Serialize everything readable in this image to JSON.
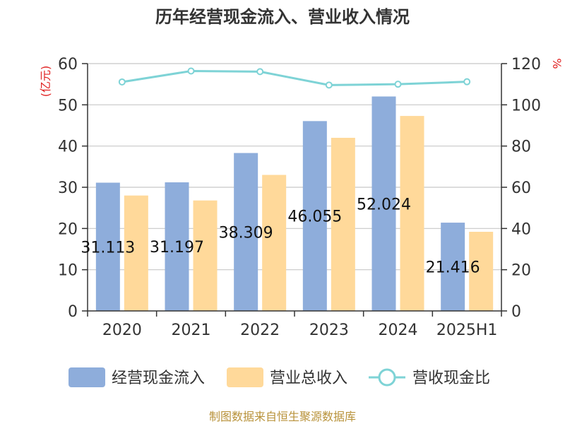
{
  "chart_data": {
    "type": "bar",
    "title": "历年经营现金流入、营业收入情况",
    "categories": [
      "2020",
      "2021",
      "2022",
      "2023",
      "2024",
      "2025H1"
    ],
    "series": [
      {
        "name": "经营现金流入",
        "values": [
          31.113,
          31.197,
          38.309,
          46.055,
          52.024,
          21.416
        ],
        "color": "#8EADDB",
        "axis": "left",
        "data_labels": [
          "31.113",
          "31.197",
          "38.309",
          "46.055",
          "52.024",
          "21.416"
        ]
      },
      {
        "name": "营业总收入",
        "values": [
          28.0,
          26.8,
          33.0,
          42.0,
          47.3,
          19.2
        ],
        "color": "#FFD99A",
        "axis": "left"
      },
      {
        "name": "营收现金比",
        "type": "line",
        "values": [
          111.1,
          116.4,
          116.1,
          109.6,
          110.0,
          111.2
        ],
        "color": "#7ED3D6",
        "axis": "right"
      }
    ],
    "y_left": {
      "label": "(亿元)",
      "min": 0,
      "max": 60,
      "ticks": [
        0,
        10,
        20,
        30,
        40,
        50,
        60
      ]
    },
    "y_right": {
      "label": "%",
      "min": 0,
      "max": 120,
      "ticks": [
        0,
        20,
        40,
        60,
        80,
        100,
        120
      ]
    },
    "grid": true,
    "legend_position": "bottom",
    "axis_label_color": "#E02020",
    "source": "制图数据来自恒生聚源数据库",
    "source_color": "#B8923A"
  }
}
